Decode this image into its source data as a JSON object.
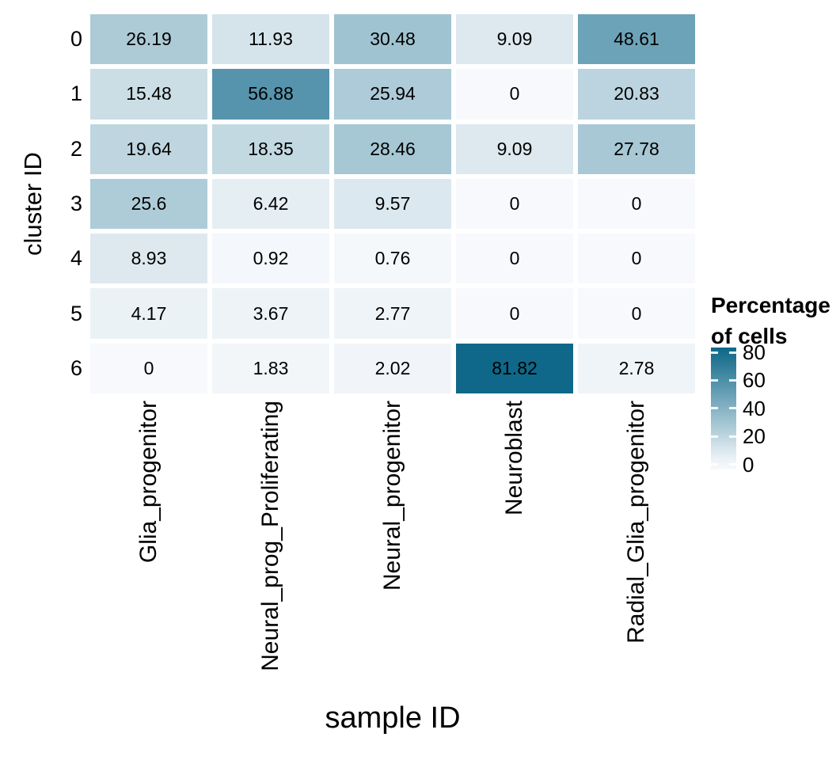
{
  "figure": {
    "background": "#FFFFFF"
  },
  "chart_data": {
    "type": "heatmap",
    "title": "",
    "xlabel": "sample ID",
    "ylabel": "cluster ID",
    "x_categories": [
      "Glia_progenitor",
      "Neural_prog_Proliferating",
      "Neural_progenitor",
      "Neuroblast",
      "Radial_Glia_progenitor"
    ],
    "y_categories": [
      "0",
      "1",
      "2",
      "3",
      "4",
      "5",
      "6"
    ],
    "values": [
      [
        26.19,
        11.93,
        30.48,
        9.09,
        48.61
      ],
      [
        15.48,
        56.88,
        25.94,
        0,
        20.83
      ],
      [
        19.64,
        18.35,
        28.46,
        9.09,
        27.78
      ],
      [
        25.6,
        6.42,
        9.57,
        0,
        0
      ],
      [
        8.93,
        0.92,
        0.76,
        0,
        0
      ],
      [
        4.17,
        3.67,
        2.77,
        0,
        0
      ],
      [
        0,
        1.83,
        2.02,
        81.82,
        2.78
      ]
    ],
    "legend": {
      "title_lines": [
        "Percentage",
        "of cells"
      ],
      "tick_labels": [
        "80",
        "60",
        "40",
        "20",
        "0"
      ],
      "tick_values": [
        80,
        60,
        40,
        20,
        0
      ],
      "position": "right"
    },
    "colors": {
      "low": "#F7F9FC",
      "high": "#0E6889",
      "scale_max": 82,
      "cell_text": "#000000"
    },
    "grid_lines": false
  }
}
